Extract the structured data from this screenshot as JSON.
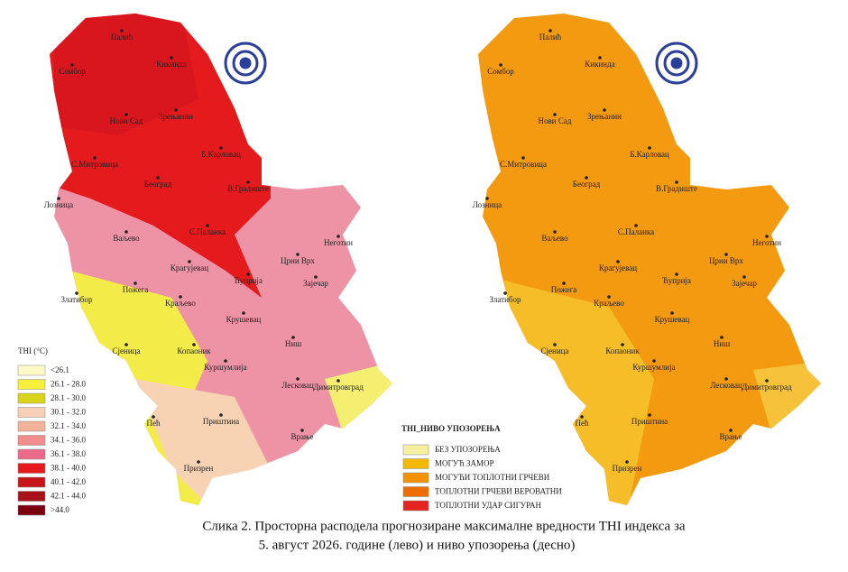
{
  "maps": [
    {
      "legend_title": "THI (°C)",
      "legend": [
        {
          "label": "<26.1",
          "color": "#fdf9c8"
        },
        {
          "label": "26.1 - 28.0",
          "color": "#f5f03a"
        },
        {
          "label": "28.1 - 30.0",
          "color": "#d8d41a"
        },
        {
          "label": "30.1 - 32.0",
          "color": "#f7d0b8"
        },
        {
          "label": "32.1 - 34.0",
          "color": "#f3b39a"
        },
        {
          "label": "34.1 - 36.0",
          "color": "#f08c8c"
        },
        {
          "label": "36.1 - 38.0",
          "color": "#eb6a8c"
        },
        {
          "label": "38.1 - 40.0",
          "color": "#e41a1c"
        },
        {
          "label": "40.1 - 42.0",
          "color": "#c7151a"
        },
        {
          "label": "42.1 - 44.0",
          "color": "#a8101a"
        },
        {
          "label": ">44.0",
          "color": "#7a0010"
        }
      ]
    },
    {
      "legend_title": "THI_НИВО УПОЗОРЕЊА",
      "legend": [
        {
          "label": "БЕЗ УПОЗОРЕЊА",
          "color": "#f5f0a0"
        },
        {
          "label": "МОГУЋ ЗАМОР",
          "color": "#f5b800"
        },
        {
          "label": "МОГУЋИ ТОПЛОТНИ ГРЧЕВИ",
          "color": "#f39200"
        },
        {
          "label": "ТОПЛОТНИ ГРЧЕВИ ВЕРОВАТНИ",
          "color": "#ef6c00"
        },
        {
          "label": "ТОПЛОТНИ УДАР СИГУРАН",
          "color": "#e52320"
        }
      ]
    }
  ],
  "cities": [
    "Палић",
    "Кикинда",
    "Сомбор",
    "Нови Сад",
    "Зрењанин",
    "С.Митровица",
    "Б.Карловац",
    "Београд",
    "В.Градиште",
    "Лозница",
    "Ваљево",
    "С.Паланка",
    "Неготин",
    "Црни Врх",
    "Крагујевац",
    "Ћуприја",
    "Зајечар",
    "Златибор",
    "Пожега",
    "Краљево",
    "Крушевац",
    "Ниш",
    "Сјеница",
    "Копаоник",
    "Куршумлија",
    "Лесковац",
    "Димитровград",
    "Пећ",
    "Приштина",
    "Врање",
    "Призрен"
  ],
  "caption": [
    "Слика 2. Просторна расподела прогнозиране максималне вредности THI индекса за",
    "5. август 2026. године (лево) и ниво упозорења (десно)"
  ]
}
